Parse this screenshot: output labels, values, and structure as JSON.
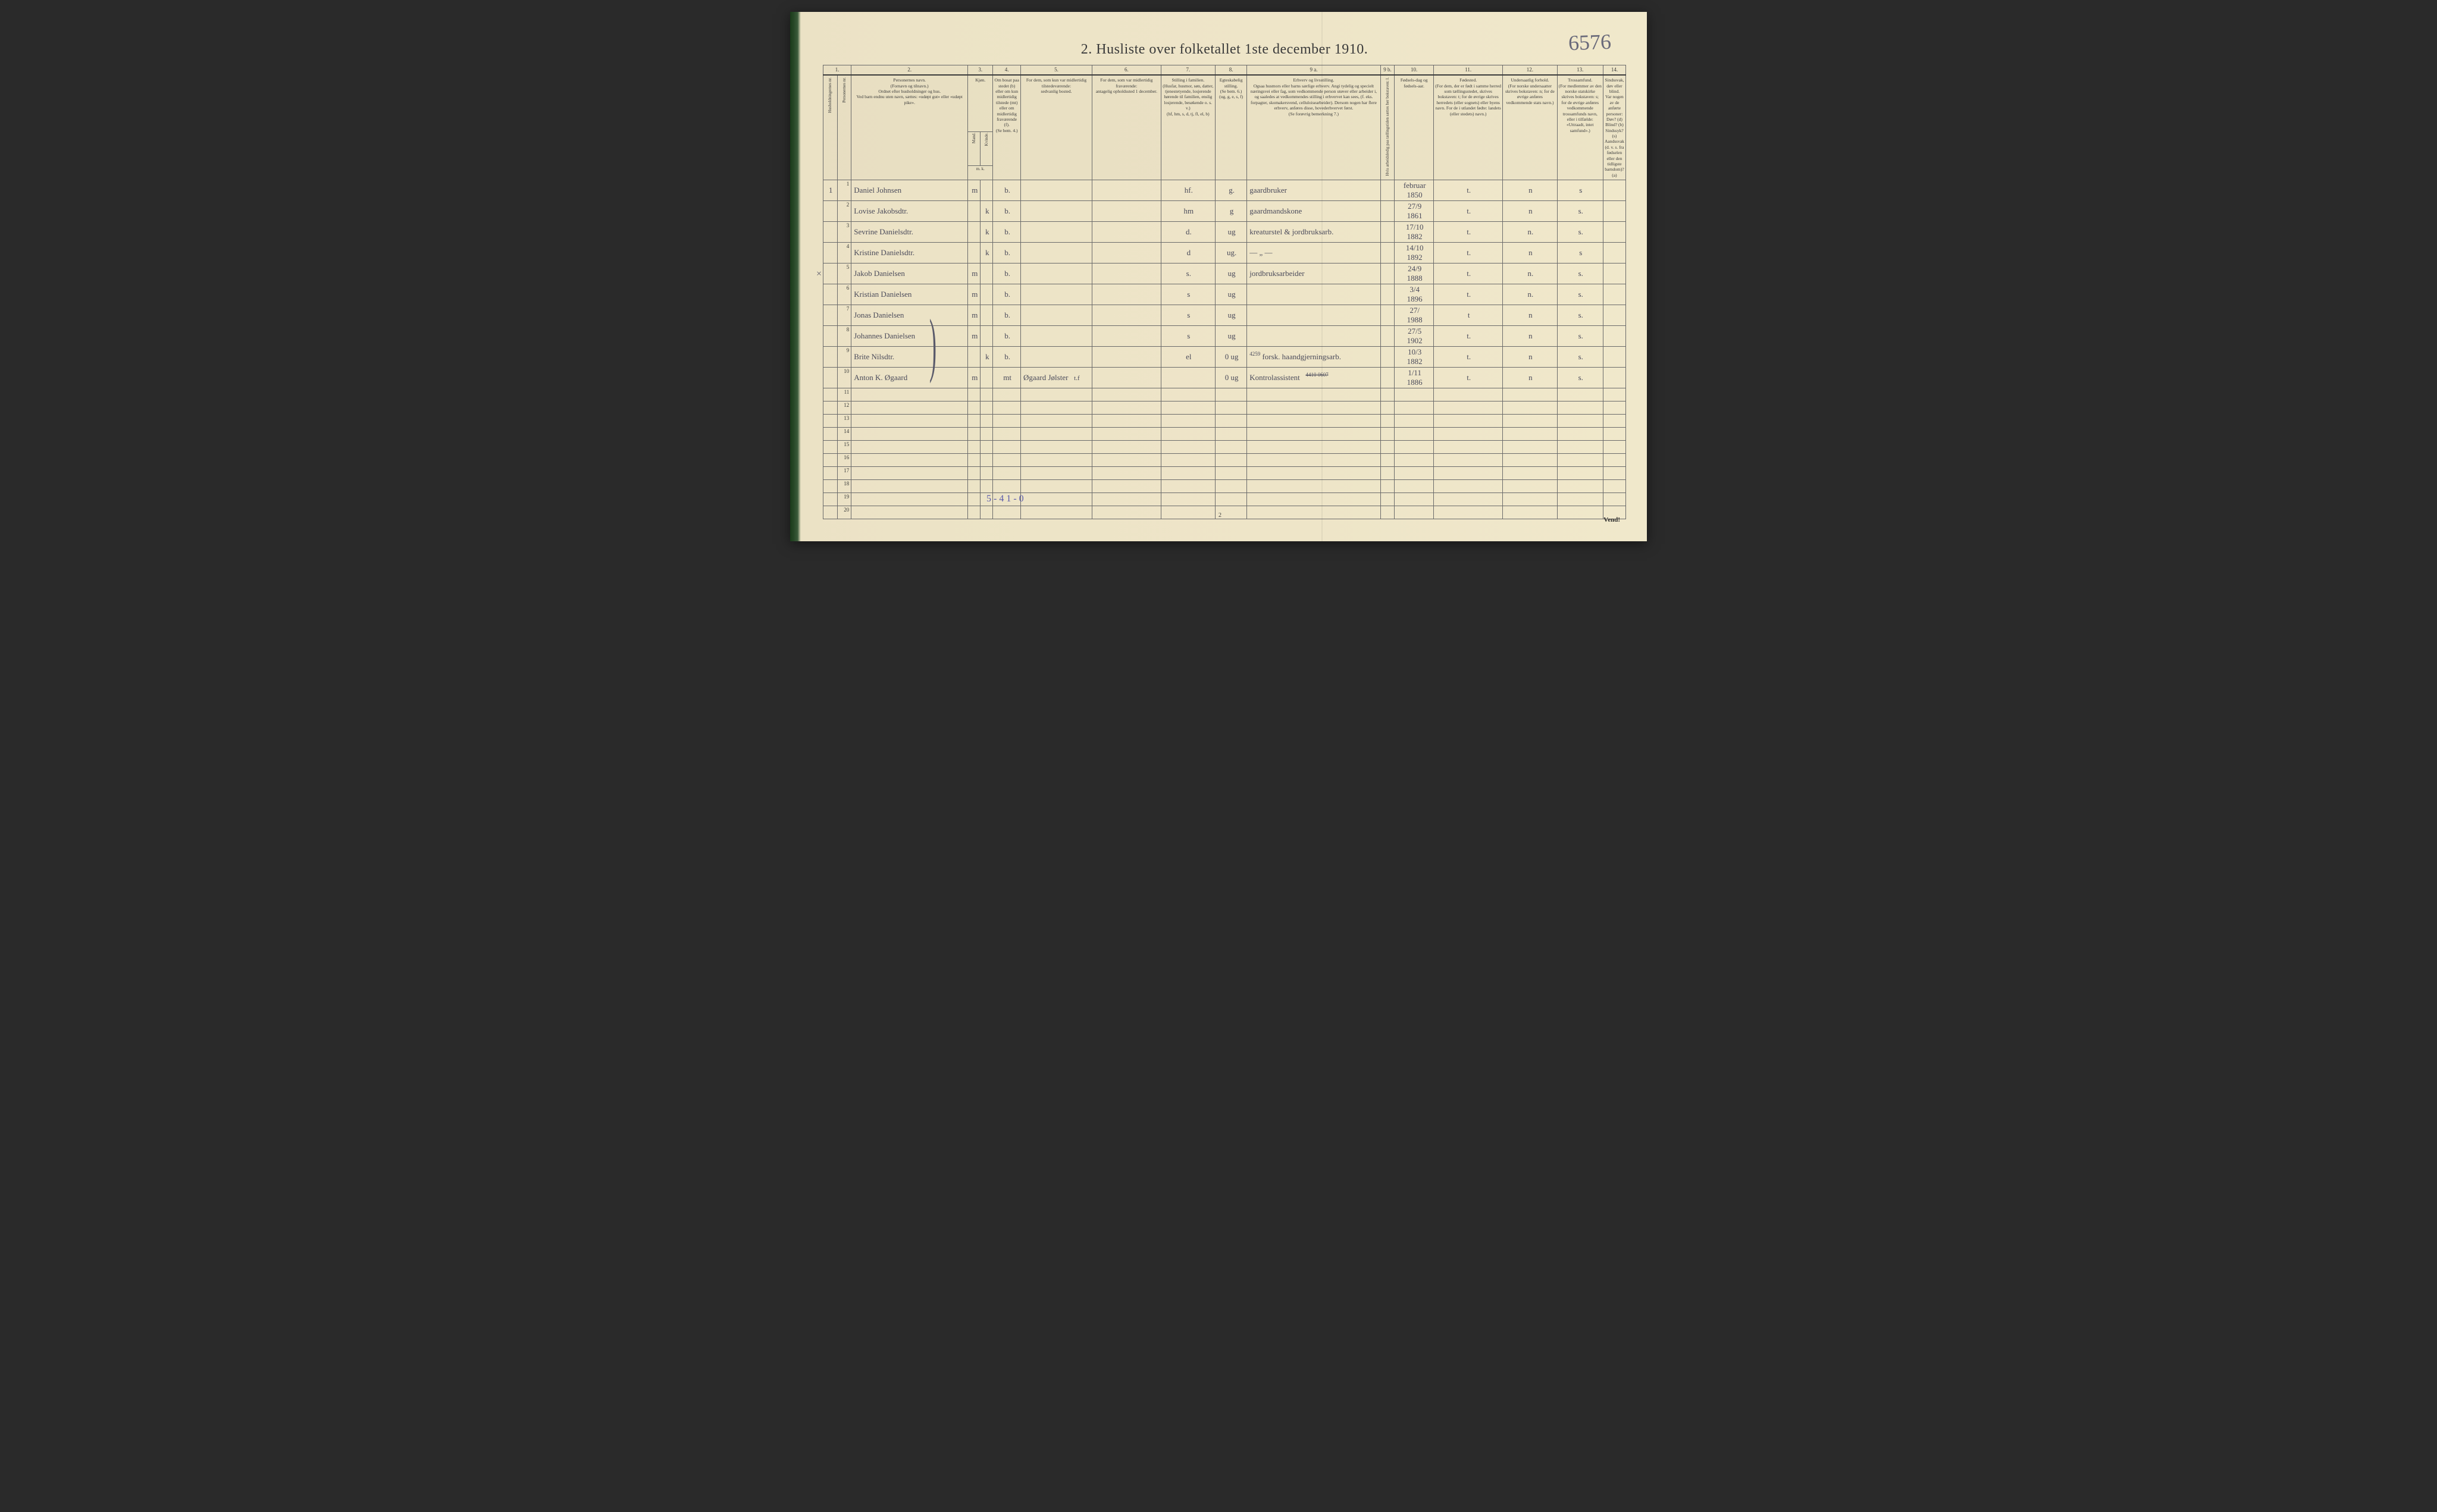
{
  "title": "2.  Husliste over folketallet 1ste december 1910.",
  "handwritten_topright": "6576",
  "left_margin_mark": "×",
  "bottom_annotation": "5 - 4    1 - 0",
  "page_number_bottom": "2",
  "vend": "Vend!",
  "columns": {
    "nums": [
      "1.",
      "2.",
      "3.",
      "4.",
      "5.",
      "6.",
      "7.",
      "8.",
      "9 a.",
      "9 b.",
      "10.",
      "11.",
      "12.",
      "13.",
      "14."
    ],
    "h1": "Husholdningernes nr.",
    "h1b": "Personernes nr.",
    "h2": "Personernes navn.\n(Fornavn og tilnavn.)\nOrdnet efter husholdninger og hus.\nVed barn endnu uten navn, sættes: «udøpt gut» eller «udøpt pike».",
    "h3a": "Kjøn.",
    "h3b_m": "Mand.",
    "h3b_k": "Kvinde.",
    "h3c": "m.  k.",
    "h4": "Om bosat paa stedet (b) eller om kun midlertidig tilstede (mt) eller om midlertidig fraværende (f).\n(Se bem. 4.)",
    "h5": "For dem, som kun var midlertidig tilstedeværende:\nsedvanlig bosted.",
    "h6": "For dem, som var midlertidig fraværende:\nantagelig opholdssted 1 december.",
    "h7": "Stilling i familien.\n(Husfar, husmor, søn, datter, tjenestetyende, losjerende hørende til familien, enslig losjerende, besøkende o. s. v.)\n(hf, hm, s, d, tj, fl, el, b)",
    "h8": "Egteskabelig stilling.\n(Se bem. 6.)\n(ug, g, e, s, f)",
    "h9a": "Erhverv og livsstilling.\nOgsaa husmors eller barns særlige erhverv. Angi tydelig og specielt næringsvei eller fag, som vedkommende person utøver eller arbeider i, og saaledes at vedkommendes stilling i erhvervet kan sees, (f. eks. forpagter, skomakersvend, celluloisearbeider). Dersom nogen har flere erhverv, anføres disse, hovederhvervet først.\n(Se forøvrig bemerkning 7.)",
    "h9b": "Hvis arbeidsledig paa tællingstiden sættes her bokstaven: l.",
    "h10": "Fødsels-dag og fødsels-aar.",
    "h11": "Fødested.\n(For dem, der er født i samme herred som tællingsstedet, skrives bokstaven: t; for de øvrige skrives herredets (eller sognets) eller byens navn. For de i utlandet fødte: landets (eller stedets) navn.)",
    "h12": "Undersaatlig forhold.\n(For norske undersaatter skrives bokstaven: n; for de øvrige anføres vedkommende stats navn.)",
    "h13": "Trossamfund.\n(For medlemmer av den norske statskirke skrives bokstaven: s; for de øvrige anføres vedkommende trossamfunds navn, eller i tilfælde: «Uttraadt, intet samfund».)",
    "h14": "Sindssvak, døv eller blind.\nVar nogen av de anførte personer:\nDøv?        (d)\nBlind?       (b)\nSindssyk?  (s)\nAandssvak (d. v. s. fra fødselen eller den tidligste barndom)? (a)"
  },
  "rows": [
    {
      "hh": "1",
      "n": "1",
      "name": "Daniel Johnsen",
      "mk": "m",
      "b": "b.",
      "c5": "",
      "c6": "",
      "c7": "hf.",
      "c8": "g.",
      "c9": "gaardbruker",
      "c10": "februar\n1850",
      "c11": "t.",
      "c12": "n",
      "c13": "s",
      "c14": ""
    },
    {
      "hh": "",
      "n": "2",
      "name": "Lovise Jakobsdtr.",
      "mk": "k",
      "b": "b.",
      "c5": "",
      "c6": "",
      "c7": "hm",
      "c8": "g",
      "c9": "gaardmandskone",
      "c10": "27/9\n1861",
      "c11": "t.",
      "c12": "n",
      "c13": "s.",
      "c14": ""
    },
    {
      "hh": "",
      "n": "3",
      "name": "Sevrine Danielsdtr.",
      "mk": "k",
      "b": "b.",
      "c5": "",
      "c6": "",
      "c7": "d.",
      "c8": "ug",
      "c9": "kreaturstel & jordbruksarb.",
      "c10": "17/10\n1882",
      "c11": "t.",
      "c12": "n.",
      "c13": "s.",
      "c14": ""
    },
    {
      "hh": "",
      "n": "4",
      "name": "Kristine Danielsdtr.",
      "mk": "k",
      "b": "b.",
      "c5": "",
      "c6": "",
      "c7": "d",
      "c8": "ug.",
      "c9": "— „ —",
      "c10": "14/10\n1892",
      "c11": "t.",
      "c12": "n",
      "c13": "s",
      "c14": ""
    },
    {
      "hh": "",
      "n": "5",
      "name": "Jakob Danielsen",
      "mk": "m",
      "b": "b.",
      "c5": "",
      "c6": "",
      "c7": "s.",
      "c8": "ug",
      "c9": "jordbruksarbeider",
      "c10": "24/9\n1888",
      "c11": "t.",
      "c12": "n.",
      "c13": "s.",
      "c14": ""
    },
    {
      "hh": "",
      "n": "6",
      "name": "Kristian Danielsen",
      "mk": "m",
      "b": "b.",
      "c5": "",
      "c6": "",
      "c7": "s",
      "c8": "ug",
      "c9": "",
      "c10": "3/4\n1896",
      "c11": "t.",
      "c12": "n.",
      "c13": "s.",
      "c14": ""
    },
    {
      "hh": "",
      "n": "7",
      "name": "Jonas Danielsen",
      "mk": "m",
      "b": "b.",
      "c5": "",
      "c6": "",
      "c7": "s",
      "c8": "ug",
      "c9": "",
      "c10": "27/\n1988",
      "c11": "t",
      "c12": "n",
      "c13": "s.",
      "c14": ""
    },
    {
      "hh": "",
      "n": "8",
      "name": "Johannes Danielsen",
      "mk": "m",
      "b": "b.",
      "c5": "",
      "c6": "",
      "c7": "s",
      "c8": "ug",
      "c9": "",
      "c10": "27/5\n1902",
      "c11": "t.",
      "c12": "n",
      "c13": "s.",
      "c14": ""
    },
    {
      "hh": "",
      "n": "9",
      "name": "Brite Nilsdtr.",
      "mk": "k",
      "b": "b.",
      "c5": "",
      "c6": "",
      "c7": "el",
      "c8": "0  ug",
      "c9": "forsk. haandgjerningsarb.",
      "c9sup": "4259",
      "c10": "10/3\n1882",
      "c11": "t.",
      "c12": "n",
      "c13": "s.",
      "c14": ""
    },
    {
      "hh": "",
      "n": "10",
      "name": "Anton K. Øgaard",
      "mk": "m",
      "b": "mt",
      "c5": "Øgaard Jølster",
      "c5x": "t.f",
      "c6": "",
      "c7": "",
      "c8": "0  ug",
      "c9": "Kontrolassistent",
      "c9strike": "4410 0607",
      "c10": "1/11\n1886",
      "c11": "t.",
      "c12": "n",
      "c13": "s.",
      "c14": ""
    }
  ],
  "empty_rows": [
    "11",
    "12",
    "13",
    "14",
    "15",
    "16",
    "17",
    "18",
    "19",
    "20"
  ],
  "colors": {
    "paper": "#ede4c7",
    "ink_print": "#3a3a3a",
    "ink_hand": "#4a4a5a",
    "ink_blue": "#5a5aaa",
    "border": "#6a6a6a"
  },
  "col_widths_pct": [
    1.8,
    1.8,
    15,
    1.6,
    1.6,
    3.5,
    9,
    9,
    7,
    4,
    17,
    1.8,
    5,
    9,
    7,
    9,
    7
  ],
  "typography": {
    "title_pt": 24,
    "header_pt": 7.5,
    "body_hand_pt": 13,
    "rownum_pt": 9
  }
}
